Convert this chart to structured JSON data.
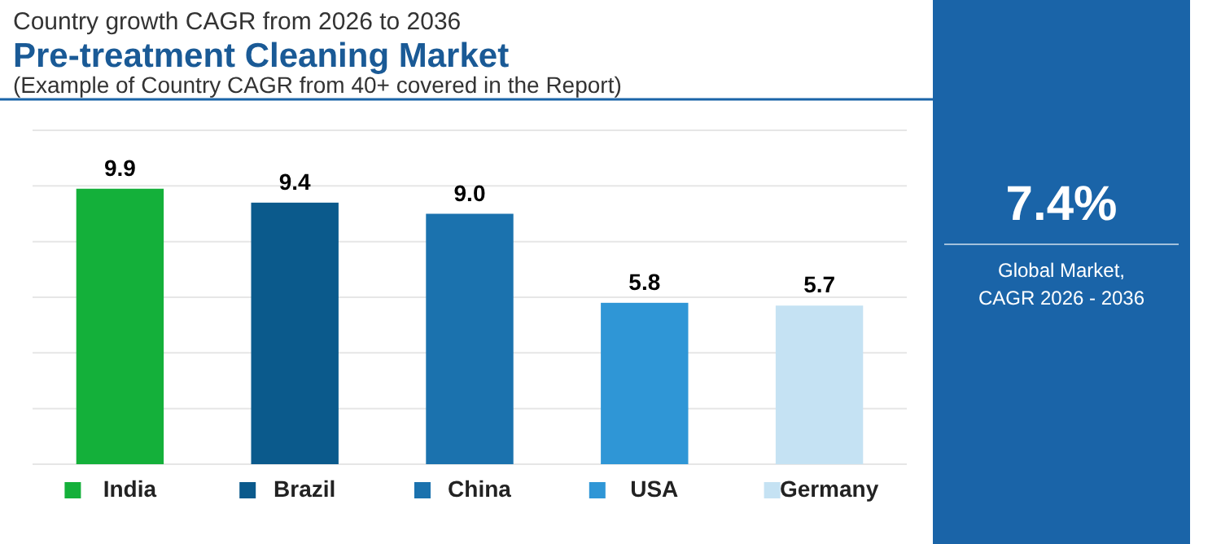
{
  "chart_data": {
    "type": "bar",
    "title": "Pre-treatment Cleaning Market",
    "subtitle": "Country growth CAGR from 2026 to 2036",
    "annotations": [
      "(Example of Country CAGR from 40+ covered in the Report)",
      "7.4%",
      "Global Market,\nCAGR 2026 - 2036"
    ],
    "categories": [
      "India",
      "Brazil",
      "China",
      "USA",
      "Germany"
    ],
    "values": [
      9.9,
      9.4,
      9.0,
      5.8,
      5.7
    ],
    "value_labels": [
      "9.9",
      "9.4",
      "9.0",
      "5.8",
      "5.7"
    ],
    "colors": [
      "#14b03a",
      "#0b5a8c",
      "#1b72ae",
      "#2f96d6",
      "#c5e2f3"
    ],
    "ylim": [
      0,
      12
    ],
    "yticks": [
      {
        "value": 0,
        "label": null
      },
      {
        "value": 2,
        "label": null
      },
      {
        "value": 4,
        "label": null
      },
      {
        "value": 6,
        "label": null
      },
      {
        "value": 8,
        "label": null
      },
      {
        "value": 10,
        "label": null
      },
      {
        "value": 12,
        "label": null
      }
    ],
    "grid": "y",
    "tick_labels": "x"
  }
}
